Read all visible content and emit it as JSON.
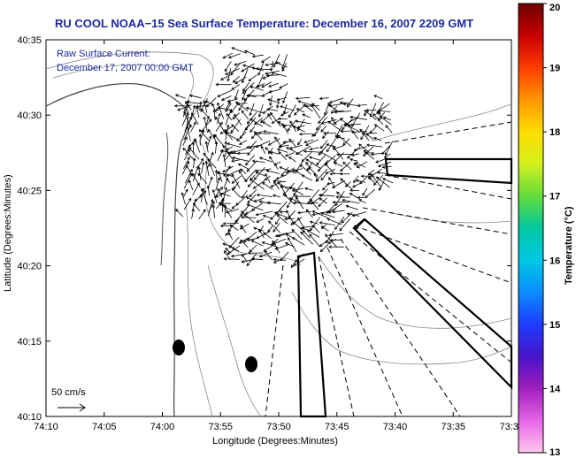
{
  "chart_data": {
    "type": "map",
    "title": "RU COOL  NOAA−15  Sea Surface Temperature:  December 16, 2007 2209 GMT",
    "annotation": {
      "line1": "Raw Surface Current:",
      "line2": "December 17, 2007 00:00 GMT"
    },
    "xlabel": "Longitude (Degrees:Minutes)",
    "ylabel": "Latitude (Degrees:Minutes)",
    "xticks": [
      "74:10",
      "74:05",
      "74:00",
      "73:55",
      "73:50",
      "73:45",
      "73:40",
      "73:35",
      "73:3"
    ],
    "yticks": [
      "40:35",
      "40:30",
      "40:25",
      "40:20",
      "40:15",
      "40:10"
    ],
    "scale_label": "50 cm/s",
    "colorbar": {
      "label": "Temperature (°C)",
      "ticks": [
        "20",
        "19",
        "18",
        "17",
        "16",
        "15",
        "14",
        "13"
      ],
      "colors": [
        "#6e0000",
        "#c80000",
        "#ff3c00",
        "#ff9600",
        "#ffdc00",
        "#d2f01e",
        "#64dc3c",
        "#00c8a0",
        "#00c8e6",
        "#0a8cff",
        "#1e3cff",
        "#4614c8",
        "#a01ebe",
        "#e664e6",
        "#ffc8f0"
      ]
    }
  }
}
